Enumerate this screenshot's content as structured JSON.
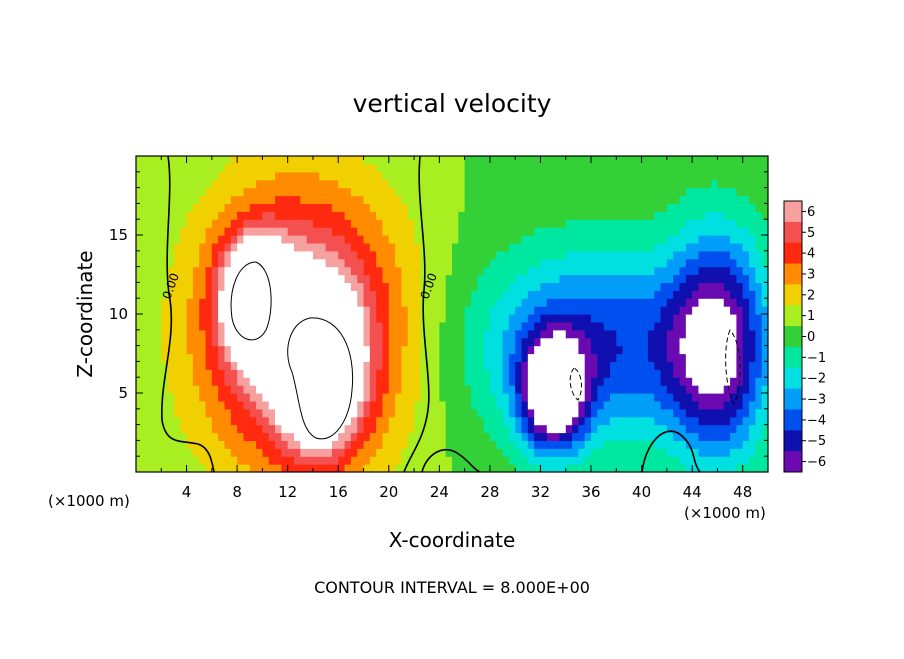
{
  "chart_data": {
    "type": "heatmap",
    "title": "vertical velocity",
    "xlabel": "X-coordinate",
    "ylabel": "Z-coordinate",
    "x_unit_label": "(×1000 m)",
    "x_unit_label_right": "(×1000 m)",
    "xlim": [
      0,
      50
    ],
    "ylim": [
      0,
      20
    ],
    "x_ticks": [
      4,
      8,
      12,
      16,
      20,
      24,
      28,
      32,
      36,
      40,
      44,
      48
    ],
    "x_tick_labels": [
      "4",
      "8",
      "12",
      "16",
      "20",
      "24",
      "28",
      "32",
      "36",
      "40",
      "44",
      "48"
    ],
    "y_ticks": [
      5,
      10,
      15
    ],
    "y_tick_labels": [
      "5",
      "10",
      "15"
    ],
    "colorbar": {
      "values": [
        6,
        5,
        4,
        3,
        2,
        1,
        0,
        -1,
        -2,
        -3,
        -4,
        -5,
        -6
      ],
      "labels": [
        "6",
        "5",
        "4",
        "3",
        "2",
        "1",
        "0",
        "−1",
        "−2",
        "−3",
        "−4",
        "−5",
        "−6"
      ],
      "colors": [
        "#f7a0a0",
        "#f45050",
        "#ff2a10",
        "#ff8c00",
        "#f0d000",
        "#a8ee20",
        "#34d038",
        "#00e8a0",
        "#00e0e0",
        "#009ef8",
        "#0050f0",
        "#1010b0",
        "#6a0ab0"
      ]
    },
    "contour_labels": [
      "0.00",
      "0.00"
    ],
    "footer": "CONTOUR INTERVAL = 8.000E+00",
    "features": [
      {
        "kind": "updraft",
        "x": 13,
        "z": 9,
        "rx": 8,
        "rz": 9,
        "w": 7
      },
      {
        "kind": "updraft",
        "x": 9.5,
        "z": 11,
        "rx": 2.5,
        "rz": 3.5,
        "w": 9
      },
      {
        "kind": "updraft",
        "x": 14.5,
        "z": 6.5,
        "rx": 3,
        "rz": 4.5,
        "w": 9
      },
      {
        "kind": "downdraft",
        "x": 36,
        "z": 8,
        "rx": 9,
        "rz": 6,
        "w": -5
      },
      {
        "kind": "downdraft",
        "x": 33,
        "z": 5,
        "rx": 2.5,
        "rz": 3.5,
        "w": -8
      },
      {
        "kind": "downdraft",
        "x": 46,
        "z": 8,
        "rx": 4,
        "rz": 7,
        "w": -7
      }
    ]
  }
}
